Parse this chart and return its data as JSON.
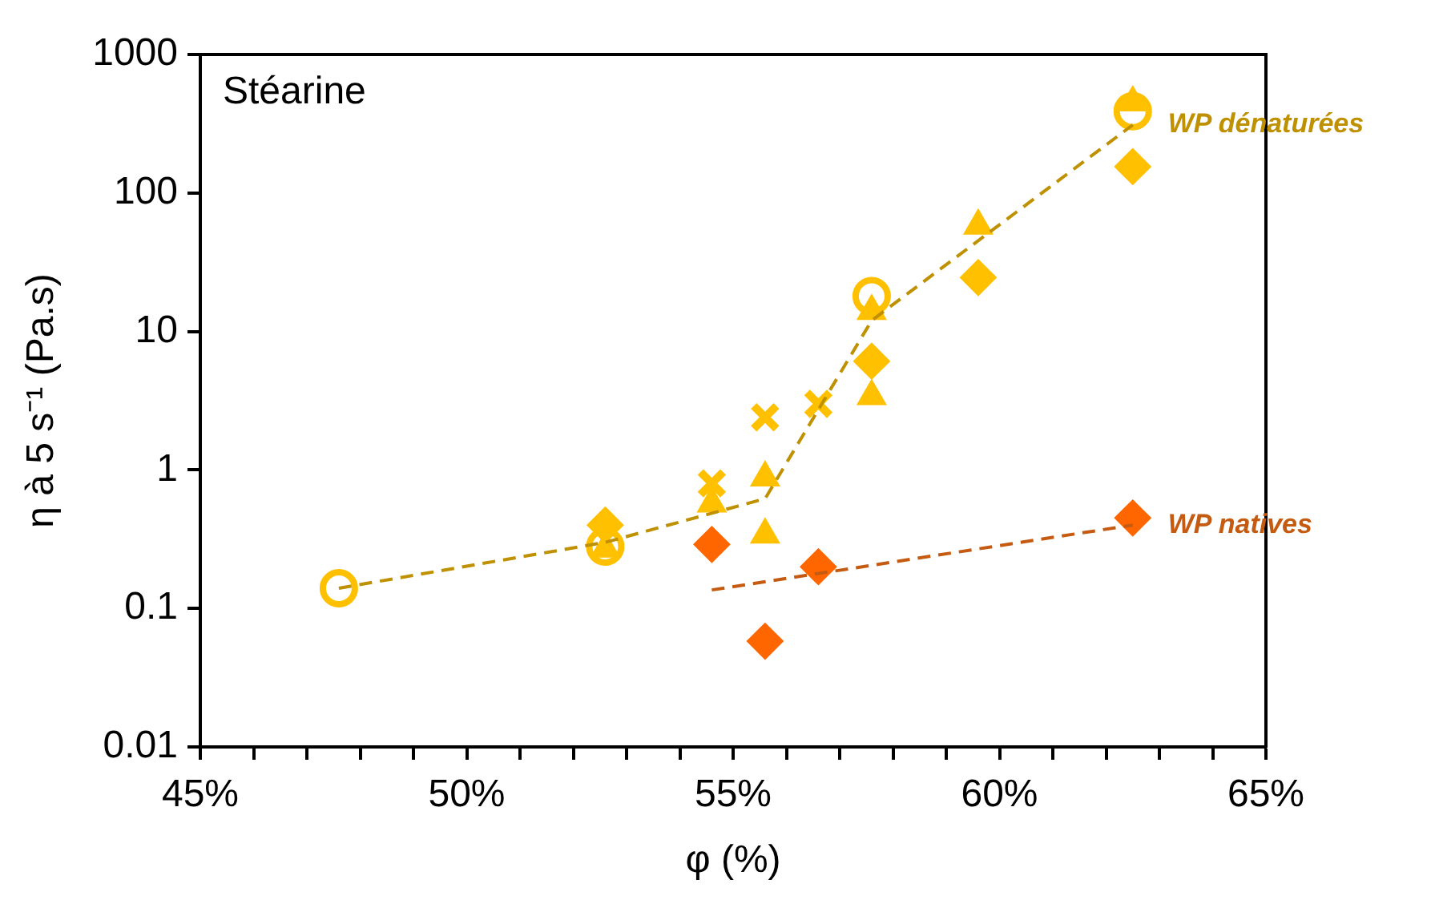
{
  "chart_data": {
    "type": "scatter",
    "xlabel": "φ (%)",
    "ylabel": "η à 5 s⁻¹ (Pa.s)",
    "log": "y",
    "grid": false,
    "annotations": [
      "Stéarine"
    ],
    "xlim": [
      45,
      65
    ],
    "xticks": [
      {
        "value": 45,
        "label": "45%"
      },
      {
        "value": 46,
        "label": null
      },
      {
        "value": 47,
        "label": null
      },
      {
        "value": 48,
        "label": null
      },
      {
        "value": 49,
        "label": null
      },
      {
        "value": 50,
        "label": "50%"
      },
      {
        "value": 51,
        "label": null
      },
      {
        "value": 52,
        "label": null
      },
      {
        "value": 53,
        "label": null
      },
      {
        "value": 54,
        "label": null
      },
      {
        "value": 55,
        "label": "55%"
      },
      {
        "value": 56,
        "label": null
      },
      {
        "value": 57,
        "label": null
      },
      {
        "value": 58,
        "label": null
      },
      {
        "value": 59,
        "label": null
      },
      {
        "value": 60,
        "label": "60%"
      },
      {
        "value": 61,
        "label": null
      },
      {
        "value": 62,
        "label": null
      },
      {
        "value": 63,
        "label": null
      },
      {
        "value": 64,
        "label": null
      },
      {
        "value": 65,
        "label": "65%"
      }
    ],
    "ylim": [
      0.01,
      1000
    ],
    "yticks": [
      0.01,
      0.1,
      1,
      10,
      100,
      1000
    ],
    "series": [
      {
        "type": "line",
        "name": "WP dénaturées",
        "color": "#bf9000",
        "line_style": "dashed",
        "marker": "none",
        "x": [
          47.6,
          52.6,
          55.6,
          57.6,
          62.5
        ],
        "values": [
          0.14,
          0.3,
          0.62,
          12,
          310
        ]
      },
      {
        "type": "line",
        "name": "WP natives",
        "color": "#c55a11",
        "line_style": "dashed",
        "marker": "none",
        "x": [
          54.6,
          62.5
        ],
        "values": [
          0.136,
          0.4
        ]
      },
      {
        "color": "#ffc000",
        "marker": "circle",
        "x": [
          47.6,
          52.6,
          57.6,
          62.5
        ],
        "values": [
          0.14,
          0.28,
          18,
          390
        ]
      },
      {
        "color": "#ffc000",
        "marker": "triangle",
        "x": [
          55.6,
          57.6,
          59.6,
          62.5
        ],
        "values": [
          0.34,
          14,
          58,
          450
        ]
      },
      {
        "color": "#ffc000",
        "marker": "triangle",
        "x": [
          52.6,
          54.6,
          55.6,
          57.6
        ],
        "values": [
          0.27,
          0.57,
          0.88,
          3.4
        ]
      },
      {
        "color": "#ffc000",
        "marker": "cross",
        "x": [
          54.6,
          55.6,
          56.6
        ],
        "values": [
          0.8,
          2.4,
          3.0
        ]
      },
      {
        "color": "#ffc000",
        "marker": "diamond",
        "x": [
          52.6,
          57.6,
          59.6,
          62.5
        ],
        "values": [
          0.4,
          6.1,
          24.5,
          155
        ]
      },
      {
        "color": "#ff6600",
        "marker": "diamond",
        "x": [
          54.6,
          55.6,
          56.6,
          62.5
        ],
        "values": [
          0.29,
          0.058,
          0.2,
          0.45
        ]
      }
    ]
  }
}
